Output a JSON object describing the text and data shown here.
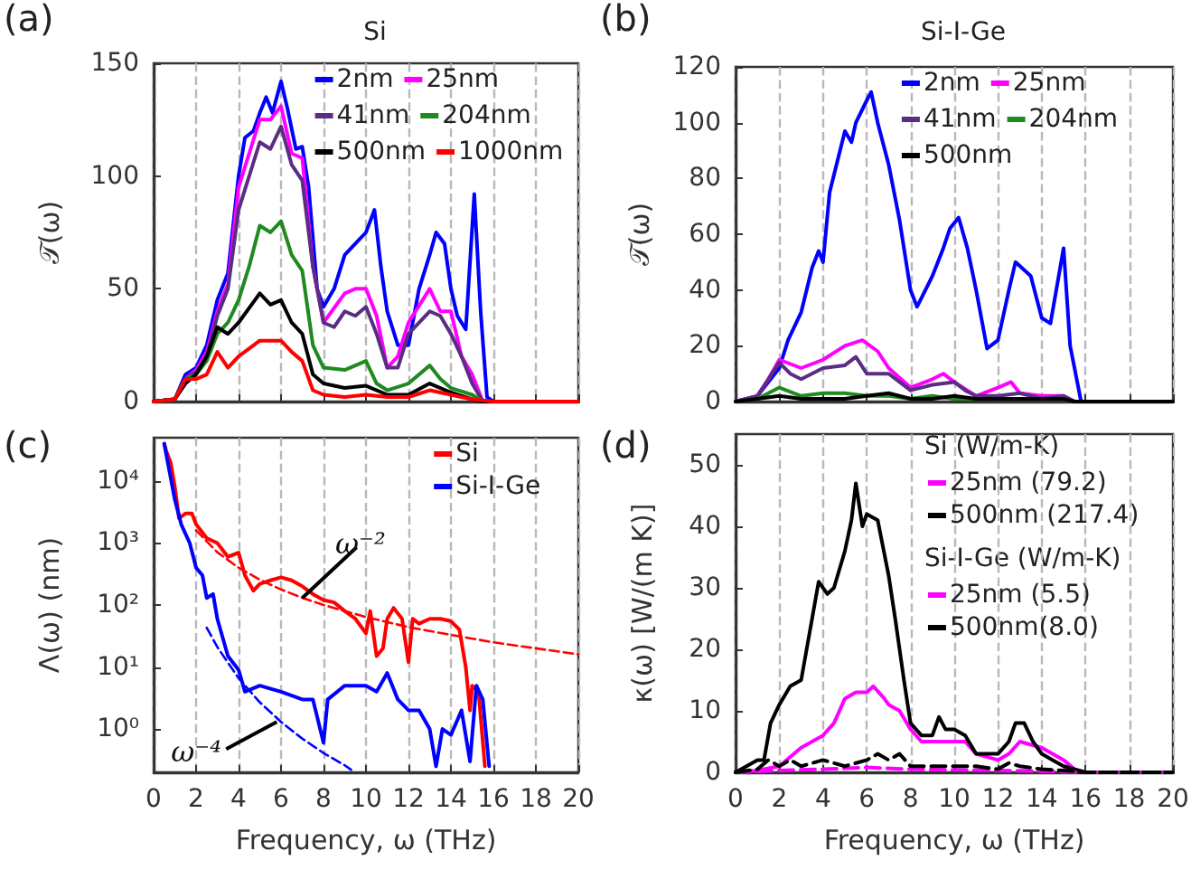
{
  "chart_data": [
    {
      "type": "line",
      "title": "Si",
      "ylabel": "𝒯(ω)",
      "annotations": [
        "(a)"
      ],
      "xlim": [
        0,
        20
      ],
      "xticks": [
        0,
        2,
        4,
        6,
        8,
        10,
        12,
        14,
        16,
        18,
        20
      ],
      "ylim": [
        0,
        150
      ],
      "yticks": [
        0,
        50,
        100,
        150
      ],
      "tick_labels": "y",
      "grid": "x",
      "legend": "top right",
      "series": [
        {
          "name": "2nm",
          "color": "#0000ff",
          "x": [
            0,
            1,
            1.5,
            2,
            2.5,
            3,
            3.5,
            4,
            4.3,
            4.7,
            5,
            5.3,
            5.6,
            6,
            6.3,
            6.7,
            7,
            7.3,
            7.7,
            8,
            8.5,
            9,
            9.5,
            10,
            10.4,
            10.7,
            11,
            11.5,
            12,
            12.5,
            13,
            13.3,
            13.7,
            14,
            14.3,
            14.7,
            15.1,
            15.4,
            15.7,
            16,
            20
          ],
          "values": [
            0,
            1,
            12,
            15,
            25,
            45,
            57,
            100,
            117,
            120,
            128,
            135,
            128,
            142,
            130,
            112,
            113,
            95,
            50,
            42,
            50,
            65,
            70,
            75,
            85,
            60,
            40,
            25,
            25,
            50,
            65,
            75,
            70,
            50,
            38,
            32,
            92,
            40,
            2,
            0,
            0
          ]
        },
        {
          "name": "25nm",
          "color": "#ff00ff",
          "x": [
            0,
            1,
            1.5,
            2,
            2.5,
            3,
            3.5,
            4,
            5,
            5.5,
            6,
            6.5,
            7,
            7.5,
            8,
            9,
            9.5,
            10,
            10.5,
            11,
            11.5,
            12,
            13,
            13.5,
            14,
            14.5,
            15,
            15.5,
            20
          ],
          "values": [
            0,
            1,
            10,
            14,
            22,
            40,
            52,
            95,
            125,
            125,
            131,
            110,
            108,
            60,
            35,
            48,
            50,
            50,
            38,
            15,
            20,
            35,
            50,
            40,
            40,
            20,
            12,
            0,
            0
          ]
        },
        {
          "name": "41nm",
          "color": "#5b2c83",
          "x": [
            0,
            1,
            1.5,
            2,
            2.5,
            3,
            3.5,
            4,
            5,
            5.5,
            6,
            6.5,
            7,
            7.5,
            8,
            8.5,
            9,
            9.5,
            10,
            10.5,
            11,
            11.5,
            12,
            13,
            13.5,
            14,
            14.5,
            15,
            15.5,
            20
          ],
          "values": [
            0,
            1,
            10,
            13,
            20,
            38,
            50,
            85,
            115,
            112,
            122,
            105,
            98,
            60,
            35,
            33,
            40,
            38,
            42,
            30,
            15,
            15,
            30,
            40,
            38,
            30,
            20,
            8,
            0,
            0
          ]
        },
        {
          "name": "204nm",
          "color": "#1f8a1f",
          "x": [
            0,
            1,
            1.5,
            2,
            2.5,
            3,
            3.5,
            4,
            4.5,
            5,
            5.5,
            6,
            6.5,
            7,
            7.5,
            8,
            9,
            10,
            10.5,
            11,
            12,
            13,
            13.5,
            14,
            15,
            15.5,
            20
          ],
          "values": [
            0,
            1,
            10,
            12,
            18,
            30,
            35,
            45,
            60,
            78,
            75,
            80,
            65,
            58,
            25,
            15,
            14,
            18,
            8,
            5,
            8,
            16,
            10,
            6,
            3,
            0,
            0
          ]
        },
        {
          "name": "500nm",
          "color": "#000000",
          "x": [
            0,
            1,
            1.5,
            2,
            2.5,
            3,
            3.5,
            4,
            5,
            5.5,
            6,
            6.5,
            7,
            7.5,
            8,
            9,
            10,
            11,
            12,
            13,
            14,
            15,
            15.5,
            20
          ],
          "values": [
            0,
            1,
            8,
            12,
            20,
            33,
            30,
            35,
            48,
            43,
            45,
            35,
            30,
            12,
            8,
            6,
            7,
            3,
            3,
            8,
            4,
            1,
            0,
            0
          ]
        },
        {
          "name": "1000nm",
          "color": "#ff0000",
          "x": [
            0,
            1,
            1.5,
            2,
            2.5,
            3,
            3.5,
            4,
            5,
            6,
            6.5,
            7,
            7.5,
            8,
            9,
            10,
            11,
            12,
            13,
            14,
            15,
            16,
            20
          ],
          "values": [
            0,
            1,
            10,
            10,
            12,
            22,
            15,
            20,
            27,
            27,
            22,
            18,
            5,
            3,
            2,
            3,
            2,
            2,
            5,
            3,
            1,
            0,
            0
          ]
        }
      ]
    },
    {
      "type": "line",
      "title": "Si-I-Ge",
      "ylabel": "𝒯(ω)",
      "annotations": [
        "(b)"
      ],
      "xlim": [
        0,
        20
      ],
      "xticks": [
        0,
        2,
        4,
        6,
        8,
        10,
        12,
        14,
        16,
        18,
        20
      ],
      "ylim": [
        0,
        120
      ],
      "yticks": [
        0,
        20,
        40,
        60,
        80,
        100,
        120
      ],
      "tick_labels": "y",
      "grid": "x",
      "legend": "top right",
      "series": [
        {
          "name": "2nm",
          "color": "#0000ff",
          "x": [
            0,
            1,
            2,
            2.4,
            3,
            3.5,
            3.8,
            4,
            4.3,
            5,
            5.3,
            5.5,
            6,
            6.2,
            6.5,
            7,
            7.5,
            8,
            8.3,
            9,
            9.5,
            9.8,
            10.2,
            10.6,
            11,
            11.5,
            12,
            12.5,
            12.8,
            13.5,
            14,
            14.4,
            15,
            15.3,
            15.8,
            16,
            20
          ],
          "values": [
            0,
            2,
            12,
            22,
            32,
            48,
            54,
            50,
            75,
            97,
            93,
            100,
            108,
            111,
            100,
            85,
            65,
            40,
            34,
            45,
            55,
            62,
            66,
            55,
            40,
            19,
            22,
            40,
            50,
            45,
            30,
            28,
            55,
            20,
            0,
            0,
            0
          ]
        },
        {
          "name": "25nm",
          "color": "#ff00ff",
          "x": [
            0,
            1,
            1.5,
            2,
            3,
            4,
            5,
            5.8,
            6.5,
            7,
            8,
            9,
            9.5,
            10,
            11,
            12,
            12.6,
            13,
            14,
            15,
            15.5,
            20
          ],
          "values": [
            0,
            2,
            8,
            15,
            12,
            15,
            20,
            22,
            18,
            12,
            5,
            8,
            10,
            7,
            2,
            5,
            7,
            3,
            2,
            2,
            0,
            0
          ]
        },
        {
          "name": "41nm",
          "color": "#5b2c83",
          "x": [
            0,
            1,
            2,
            2.5,
            3,
            4,
            5,
            5.5,
            6,
            7,
            8,
            9,
            10,
            10.5,
            11,
            12,
            13,
            14,
            15,
            15.5,
            20
          ],
          "values": [
            0,
            2,
            14,
            10,
            8,
            12,
            13,
            16,
            10,
            10,
            4,
            6,
            7,
            4,
            2,
            2,
            3,
            1,
            2,
            0,
            0
          ]
        },
        {
          "name": "204nm",
          "color": "#1f8a1f",
          "x": [
            0,
            1,
            1.5,
            2,
            3,
            4,
            5,
            6,
            7,
            8,
            9,
            10,
            12,
            14
          ],
          "values": [
            0,
            1,
            3,
            5,
            2,
            3,
            3,
            2,
            2,
            1,
            2,
            1,
            1,
            1
          ]
        },
        {
          "name": "500nm",
          "color": "#000000",
          "x": [
            0,
            1,
            2,
            3,
            4,
            5,
            6,
            7,
            8,
            9,
            10,
            11,
            12,
            13,
            14,
            15,
            15.5,
            20
          ],
          "values": [
            0,
            1,
            2,
            1,
            1,
            1,
            2,
            3,
            1,
            1,
            2,
            1,
            1,
            1,
            1,
            1,
            0,
            0
          ]
        }
      ]
    },
    {
      "type": "line",
      "xlabel": "Frequency, ω (THz)",
      "ylabel": "Λ(ω) (nm)",
      "annotations": [
        "(c)",
        {
          "text": "ω⁻²",
          "x": 7,
          "y": 130
        },
        {
          "text": "ω⁻⁴",
          "x": 5.8,
          "y": 1.3
        }
      ],
      "log": "y",
      "xlim": [
        0,
        20
      ],
      "xticks": [
        0,
        2,
        4,
        6,
        8,
        10,
        12,
        14,
        16,
        18,
        20
      ],
      "ylim": [
        0.2,
        50000
      ],
      "yticks": [
        {
          "value": 1,
          "label": "10⁰"
        },
        {
          "value": 10,
          "label": "10¹"
        },
        {
          "value": 100,
          "label": "10²"
        },
        {
          "value": 1000,
          "label": "10³"
        },
        {
          "value": 10000,
          "label": "10⁴"
        }
      ],
      "grid": "x",
      "legend": "top right",
      "series": [
        {
          "name": "Si",
          "color": "#ff0000",
          "x": [
            0.5,
            0.6,
            0.8,
            1,
            1.2,
            1.5,
            1.8,
            2,
            2.5,
            3,
            3.5,
            4,
            4.3,
            4.7,
            5,
            5.5,
            6,
            6.5,
            7,
            7.5,
            8,
            8.5,
            9,
            9.5,
            10,
            10.2,
            10.5,
            10.8,
            11,
            11.3,
            11.7,
            12,
            12.2,
            12.5,
            13,
            13.5,
            14,
            14.4,
            14.7,
            14.9,
            15,
            15.3,
            15.6
          ],
          "values": [
            40000,
            30000,
            20000,
            8000,
            2500,
            3000,
            3000,
            2000,
            1200,
            1000,
            600,
            700,
            300,
            170,
            220,
            250,
            280,
            250,
            200,
            150,
            120,
            110,
            80,
            60,
            35,
            80,
            15,
            20,
            60,
            90,
            60,
            12,
            60,
            50,
            60,
            60,
            55,
            40,
            10,
            2,
            5,
            4,
            0.25
          ]
        },
        {
          "name": "Si-I-Ge",
          "color": "#0000ff",
          "x": [
            0.5,
            1,
            1.3,
            1.7,
            2,
            2.3,
            2.5,
            2.8,
            3,
            3.5,
            4,
            4.3,
            5,
            6,
            7,
            7.5,
            8,
            8.2,
            9,
            10,
            10.5,
            11,
            11.5,
            12,
            12.5,
            13,
            13.3,
            13.6,
            14,
            14.5,
            14.9,
            15.2,
            15.5,
            15.8
          ],
          "values": [
            40000,
            5000,
            2000,
            1000,
            400,
            300,
            130,
            150,
            60,
            15,
            9,
            4,
            5,
            4,
            3,
            3,
            0.6,
            3,
            5,
            5,
            4,
            8,
            3,
            2,
            2,
            1,
            0.25,
            1,
            0.8,
            2,
            0.3,
            5,
            3,
            0.25
          ]
        },
        {
          "color": "#ff0000",
          "line_style": "dashed",
          "x": [
            2,
            3,
            4,
            5,
            6,
            7,
            8,
            10,
            12,
            14,
            16,
            18,
            20
          ],
          "values": [
            1600,
            710,
            400,
            256,
            178,
            131,
            100,
            64,
            44,
            33,
            25,
            20,
            16
          ]
        },
        {
          "color": "#0000ff",
          "line_style": "dashed",
          "x": [
            2.5,
            3,
            4,
            5,
            6,
            7,
            8,
            9,
            9.3
          ],
          "values": [
            43,
            21,
            6.6,
            2.7,
            1.3,
            0.7,
            0.41,
            0.26,
            0.22
          ]
        }
      ]
    },
    {
      "type": "line",
      "xlabel": "Frequency, ω (THz)",
      "ylabel": "κ(ω) [W/(m K)]",
      "annotations": [
        "(d)",
        "Si (W/m-K)",
        "Si-I-Ge (W/m-K)"
      ],
      "xlim": [
        0,
        20
      ],
      "xticks": [
        0,
        2,
        4,
        6,
        8,
        10,
        12,
        14,
        16,
        18,
        20
      ],
      "ylim": [
        0,
        55
      ],
      "yticks": [
        0,
        10,
        20,
        30,
        40,
        50
      ],
      "grid": "x",
      "legend": "top right",
      "series": [
        {
          "name": "25nm (79.2)",
          "color": "#ff00ff",
          "line_style": "solid",
          "x": [
            0,
            1,
            2,
            3,
            4,
            4.5,
            5,
            5.5,
            6,
            6.3,
            6.8,
            7,
            7.5,
            8,
            8.5,
            9,
            10,
            10.5,
            11,
            12,
            12.5,
            13,
            14,
            15,
            15.5,
            16,
            20
          ],
          "values": [
            0,
            0.3,
            1,
            4,
            6,
            8,
            12,
            13,
            13,
            14,
            12,
            11,
            10,
            7,
            5,
            5,
            5,
            5,
            3,
            2,
            3,
            5,
            4,
            2,
            0.5,
            0,
            0
          ]
        },
        {
          "name": "500nm (217.4)",
          "color": "#000000",
          "line_style": "solid",
          "x": [
            0,
            0.5,
            1,
            1.3,
            1.6,
            2,
            2.5,
            3,
            3.5,
            3.8,
            4.2,
            4.5,
            5,
            5.3,
            5.5,
            5.8,
            6,
            6.5,
            7,
            7.3,
            7.7,
            8,
            8.5,
            9,
            9.3,
            9.6,
            10,
            10.5,
            11,
            11.5,
            12,
            12.5,
            12.8,
            13.2,
            13.6,
            14,
            14.5,
            15,
            15.5,
            16,
            20
          ],
          "values": [
            0,
            1,
            2,
            2,
            8,
            11,
            14,
            15,
            25,
            31,
            29,
            30,
            36,
            41,
            47,
            40,
            42,
            41,
            32,
            25,
            15,
            8,
            6,
            6,
            9,
            7,
            7,
            6,
            3,
            3,
            3,
            5,
            8,
            8,
            5,
            3,
            2,
            1,
            0.5,
            0,
            0
          ]
        },
        {
          "name": "25nm (5.5)",
          "color": "#ff00ff",
          "line_style": "dashed",
          "x": [
            0,
            2,
            4,
            6,
            8,
            10,
            12,
            14,
            16,
            20
          ],
          "values": [
            0,
            0.3,
            0.5,
            0.8,
            0.5,
            0.4,
            0.3,
            0.2,
            0,
            0
          ]
        },
        {
          "name": "500nm(8.0)",
          "color": "#000000",
          "line_style": "dashed",
          "x": [
            0,
            1,
            1.5,
            2,
            2.5,
            3,
            4,
            5,
            6,
            6.5,
            7,
            7.5,
            8,
            9,
            10,
            11,
            12,
            12.5,
            13,
            14,
            15,
            16,
            20
          ],
          "values": [
            0,
            0.5,
            2,
            1,
            2,
            1,
            2,
            1,
            2,
            3,
            2,
            3,
            1,
            1,
            1,
            1,
            0.5,
            1.5,
            1,
            0.5,
            0.3,
            0,
            0
          ]
        }
      ]
    }
  ]
}
